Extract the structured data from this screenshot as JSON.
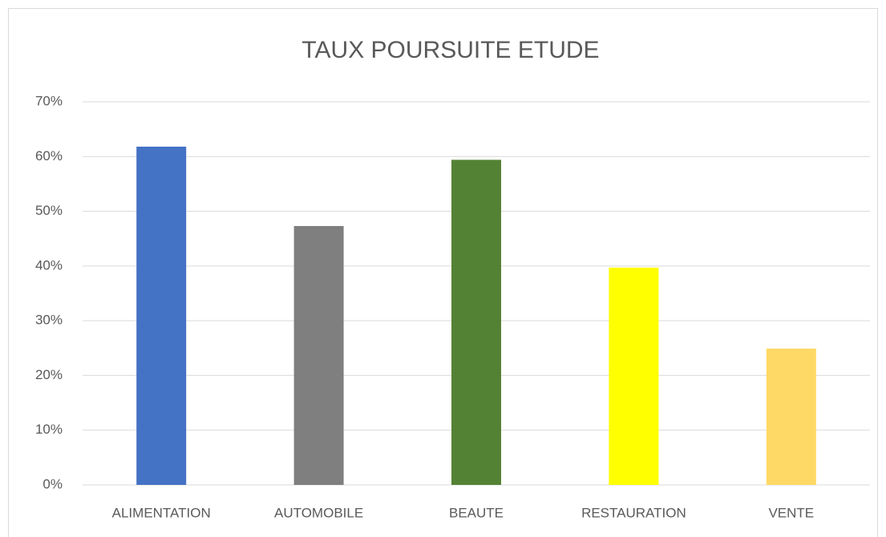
{
  "chart_data": {
    "type": "bar",
    "title": "TAUX POURSUITE ETUDE",
    "categories": [
      "ALIMENTATION",
      "AUTOMOBILE",
      "BEAUTE",
      "RESTAURATION",
      "VENTE"
    ],
    "values": [
      61.8,
      47.3,
      59.4,
      39.7,
      24.9
    ],
    "colors": [
      "#4472c4",
      "#7f7f7f",
      "#548235",
      "#ffff00",
      "#ffd966"
    ],
    "ylim": [
      0,
      70
    ],
    "yticks": [
      {
        "value": 0,
        "label": "0%"
      },
      {
        "value": 10,
        "label": "10%"
      },
      {
        "value": 20,
        "label": "20%"
      },
      {
        "value": 30,
        "label": "30%"
      },
      {
        "value": 40,
        "label": "40%"
      },
      {
        "value": 50,
        "label": "50%"
      },
      {
        "value": 60,
        "label": "60%"
      },
      {
        "value": 70,
        "label": "70%"
      }
    ],
    "grid": true
  }
}
